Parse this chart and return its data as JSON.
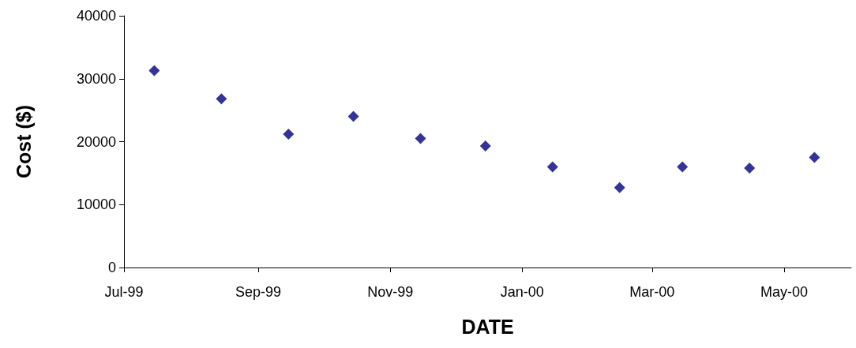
{
  "chart_data": {
    "type": "scatter",
    "xlabel": "DATE",
    "ylabel": "Cost ($)",
    "x": [
      "1999-07-15",
      "1999-08-15",
      "1999-09-15",
      "1999-10-15",
      "1999-11-15",
      "1999-12-15",
      "2000-01-15",
      "2000-02-15",
      "2000-03-15",
      "2000-04-15",
      "2000-05-15"
    ],
    "series": [
      {
        "color": "#000080",
        "values": [
          31300,
          26800,
          21200,
          24000,
          20500,
          19300,
          16000,
          12700,
          16000,
          15800,
          17500
        ]
      }
    ],
    "xlim": [
      "1999-07-01",
      "2000-06-01"
    ],
    "xticks": [
      {
        "value": "1999-07-01",
        "label": "Jul-99"
      },
      {
        "value": "1999-09-01",
        "label": "Sep-99"
      },
      {
        "value": "1999-11-01",
        "label": "Nov-99"
      },
      {
        "value": "2000-01-01",
        "label": "Jan-00"
      },
      {
        "value": "2000-03-01",
        "label": "Mar-00"
      },
      {
        "value": "2000-05-01",
        "label": "May-00"
      }
    ],
    "ylim": [
      0,
      40000
    ],
    "yticks": [
      0,
      10000,
      20000,
      30000,
      40000
    ],
    "grid": false,
    "marker": "diamond"
  }
}
